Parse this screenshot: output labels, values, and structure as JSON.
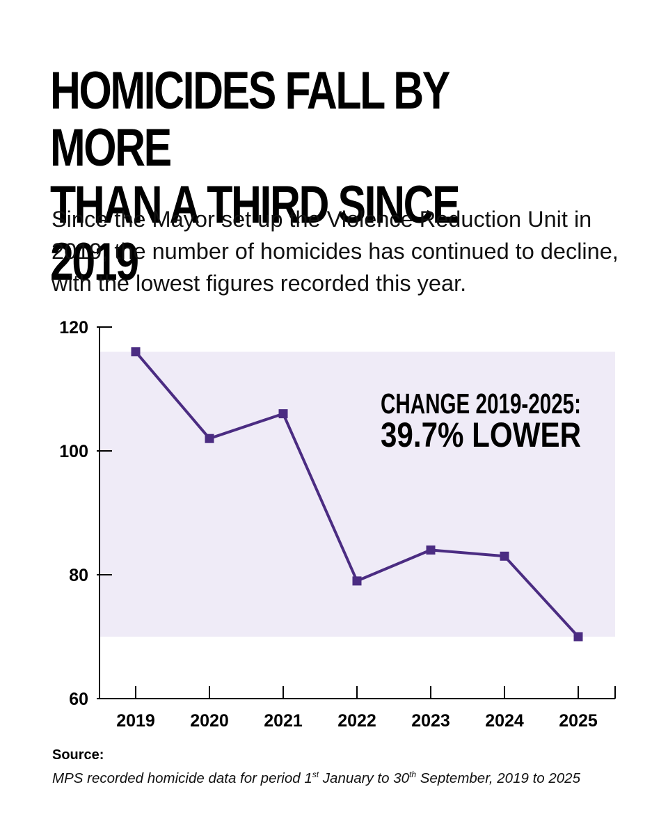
{
  "title_line1": "HOMICIDES FALL BY MORE",
  "title_line2": "THAN A THIRD SINCE 2019",
  "subtitle": "Since the Mayor set up the Violence Reduction Unit in 2019, the number of homicides has continued to decline, with the lowest figures recorded this year.",
  "source": {
    "label": "Source:",
    "text_a": "MPS recorded homicide data for period 1",
    "sup_a": "st",
    "text_b": " January to 30",
    "sup_b": "th",
    "text_c": " September, 2019 to 2025"
  },
  "chart_data": {
    "type": "line",
    "categories": [
      "2019",
      "2020",
      "2021",
      "2022",
      "2023",
      "2024",
      "2025"
    ],
    "values": [
      116,
      102,
      106,
      79,
      84,
      83,
      70
    ],
    "ylim": [
      60,
      120
    ],
    "yticks": [
      60,
      80,
      100,
      120
    ],
    "band": [
      70,
      116
    ],
    "annotation_line1": "CHANGE 2019-2025:",
    "annotation_line2": "39.7% LOWER",
    "colors": {
      "line": "#4b2c82",
      "band": "#efebf7",
      "axis": "#000000"
    }
  }
}
